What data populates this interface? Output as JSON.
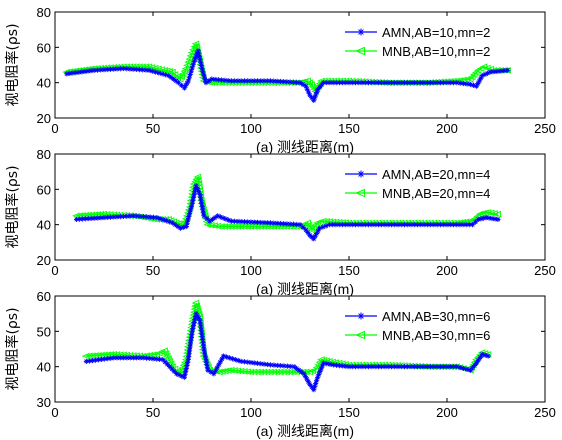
{
  "chart_data": [
    {
      "type": "line",
      "xlabel": "(a) 测线距离(m)",
      "ylabel": "视电阻率(ρs)",
      "xlim": [
        0,
        250
      ],
      "ylim": [
        20,
        80
      ],
      "xticks": [
        "0",
        "50",
        "100",
        "150",
        "200",
        "250"
      ],
      "yticks": [
        "20",
        "40",
        "60",
        "80"
      ],
      "legend_position": "top-right",
      "grid": false,
      "series": [
        {
          "name": "AMN,AB=10,mn=2",
          "color": "#0000ff",
          "marker": "star",
          "x": [
            6,
            20,
            35,
            48,
            58,
            63,
            66,
            68,
            71,
            73,
            75,
            77,
            80,
            90,
            110,
            125,
            128,
            130,
            132,
            134,
            137,
            150,
            170,
            190,
            205,
            212,
            215,
            218,
            222,
            231
          ],
          "y": [
            45,
            47,
            48,
            47,
            44,
            40,
            37,
            41,
            52,
            58,
            48,
            40,
            42,
            41,
            41,
            40,
            38,
            33,
            30,
            36,
            40,
            40,
            40,
            40,
            40,
            39,
            38,
            44,
            46,
            47
          ]
        },
        {
          "name": "MNB,AB=10,mn=2",
          "color": "#00ff00",
          "marker": "triangle-left",
          "x": [
            6,
            20,
            35,
            48,
            56,
            60,
            64,
            67,
            70,
            72,
            74,
            76,
            80,
            90,
            110,
            125,
            129,
            131,
            133,
            136,
            150,
            170,
            190,
            205,
            212,
            216,
            219,
            224,
            231
          ],
          "y": [
            46,
            48,
            49,
            49,
            47,
            46,
            42,
            48,
            57,
            62,
            52,
            41,
            40,
            40,
            40,
            40,
            41,
            39,
            35,
            41,
            41,
            40,
            40,
            41,
            42,
            47,
            49,
            47,
            47
          ]
        }
      ]
    },
    {
      "type": "line",
      "xlabel": "(a) 测线距离(m)",
      "ylabel": "视电阻率(ρs)",
      "xlim": [
        0,
        250
      ],
      "ylim": [
        20,
        80
      ],
      "xticks": [
        "0",
        "50",
        "100",
        "150",
        "200",
        "250"
      ],
      "yticks": [
        "20",
        "40",
        "60",
        "80"
      ],
      "legend_position": "top-right",
      "grid": false,
      "series": [
        {
          "name": "AMN,AB=20,mn=4",
          "color": "#0000ff",
          "marker": "star",
          "x": [
            11,
            25,
            40,
            52,
            60,
            64,
            67,
            70,
            72,
            74,
            76,
            79,
            83,
            90,
            110,
            125,
            128,
            130,
            132,
            135,
            140,
            150,
            170,
            190,
            205,
            213,
            216,
            220,
            226
          ],
          "y": [
            43,
            44,
            45,
            44,
            41,
            38,
            39,
            52,
            62,
            57,
            45,
            42,
            45,
            42,
            41,
            40,
            37,
            34,
            32,
            38,
            40,
            40,
            40,
            40,
            40,
            40,
            43,
            44,
            43
          ]
        },
        {
          "name": "MNB,AB=20,mn=4",
          "color": "#00ff00",
          "marker": "triangle-left",
          "x": [
            11,
            25,
            40,
            52,
            58,
            62,
            66,
            69,
            71,
            73,
            75,
            78,
            85,
            100,
            115,
            125,
            129,
            131,
            134,
            137,
            150,
            170,
            190,
            205,
            213,
            217,
            221,
            226
          ],
          "y": [
            45,
            46,
            45,
            43,
            43,
            41,
            40,
            50,
            63,
            67,
            52,
            40,
            39,
            39,
            39,
            39,
            41,
            37,
            41,
            42,
            41,
            41,
            41,
            41,
            42,
            46,
            47,
            46
          ]
        }
      ]
    },
    {
      "type": "line",
      "xlabel": "(a) 测线距离(m)",
      "ylabel": "视电阻率(ρs)",
      "xlim": [
        0,
        250
      ],
      "ylim": [
        30,
        60
      ],
      "xticks": [
        "0",
        "50",
        "100",
        "150",
        "200",
        "250"
      ],
      "yticks": [
        "30",
        "40",
        "50",
        "60"
      ],
      "legend_position": "top-right",
      "grid": false,
      "series": [
        {
          "name": "AMN,AB=30,mn=6",
          "color": "#0000ff",
          "marker": "star",
          "x": [
            16,
            30,
            45,
            55,
            62,
            66,
            68,
            70,
            72,
            74,
            76,
            78,
            81,
            86,
            95,
            110,
            122,
            127,
            130,
            132,
            134,
            137,
            142,
            150,
            170,
            190,
            205,
            212,
            215,
            218,
            221
          ],
          "y": [
            41.5,
            42.5,
            42.5,
            42,
            38,
            37,
            42,
            50,
            55,
            53,
            45,
            39,
            38,
            43,
            41.5,
            40.5,
            40,
            38,
            35,
            33.5,
            37,
            41,
            40.5,
            40,
            40,
            40,
            40,
            39,
            41,
            43.5,
            43
          ]
        },
        {
          "name": "MNB,AB=30,mn=6",
          "color": "#00ff00",
          "marker": "triangle-left",
          "x": [
            16,
            30,
            45,
            52,
            56,
            60,
            64,
            67,
            70,
            72,
            74,
            76,
            79,
            84,
            90,
            100,
            115,
            125,
            130,
            133,
            136,
            140,
            150,
            170,
            190,
            205,
            212,
            215,
            218,
            221
          ],
          "y": [
            43,
            43.5,
            43,
            43.5,
            44.5,
            40,
            38,
            42,
            52,
            58,
            54,
            43,
            39,
            38.5,
            39,
            38.5,
            38.5,
            38.5,
            38.5,
            39,
            42,
            41.5,
            40.5,
            40.5,
            40,
            40,
            39,
            42,
            44,
            43.5
          ]
        }
      ]
    }
  ]
}
